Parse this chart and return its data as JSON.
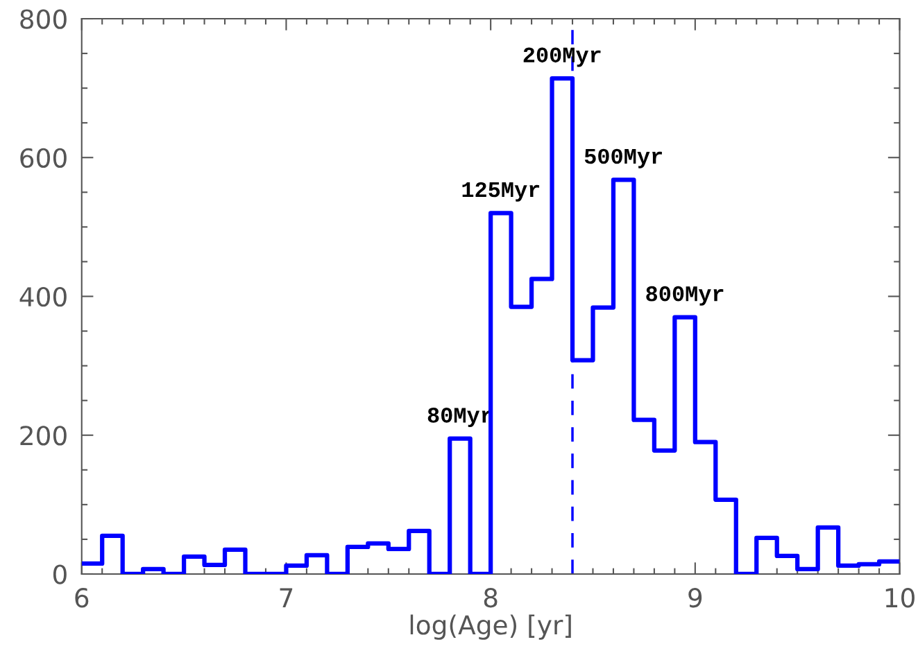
{
  "chart_data": {
    "type": "histogram",
    "xlabel": "log(Age) [yr]",
    "bins": [
      6.0,
      6.1,
      6.2,
      6.3,
      6.4,
      6.5,
      6.6,
      6.7,
      6.8,
      6.9,
      7.0,
      7.1,
      7.2,
      7.3,
      7.4,
      7.5,
      7.6,
      7.7,
      7.8,
      7.9,
      8.0,
      8.1,
      8.2,
      8.3,
      8.4,
      8.5,
      8.6,
      8.7,
      8.8,
      8.9,
      9.0,
      9.1,
      9.2,
      9.3,
      9.4,
      9.5,
      9.6,
      9.7,
      9.8,
      9.9,
      10.0
    ],
    "values": [
      15,
      55,
      0,
      7,
      0,
      25,
      13,
      35,
      0,
      0,
      12,
      27,
      0,
      39,
      44,
      36,
      62,
      0,
      195,
      0,
      520,
      385,
      425,
      714,
      308,
      384,
      568,
      222,
      178,
      370,
      190,
      107,
      0,
      52,
      26,
      7,
      67,
      12,
      14,
      18
    ],
    "color": "#0000ff",
    "line_style": "solid",
    "xlim": [
      6,
      10
    ],
    "xticks": [
      6,
      7,
      8,
      9,
      10
    ],
    "ylim": [
      0,
      800
    ],
    "yticks": [
      0,
      200,
      400,
      600,
      800
    ],
    "grid": false,
    "legend": false,
    "ref_lines": [
      {
        "axis": "x",
        "value": 8.4,
        "color": "#0000ff",
        "line_style": "dashed"
      }
    ],
    "annotations": [
      {
        "text": "80Myr",
        "x": 7.85,
        "y": 195
      },
      {
        "text": "125Myr",
        "x": 8.05,
        "y": 520
      },
      {
        "text": "200Myr",
        "x": 8.35,
        "y": 714
      },
      {
        "text": "500Myr",
        "x": 8.65,
        "y": 568
      },
      {
        "text": "800Myr",
        "x": 8.95,
        "y": 370
      }
    ]
  }
}
